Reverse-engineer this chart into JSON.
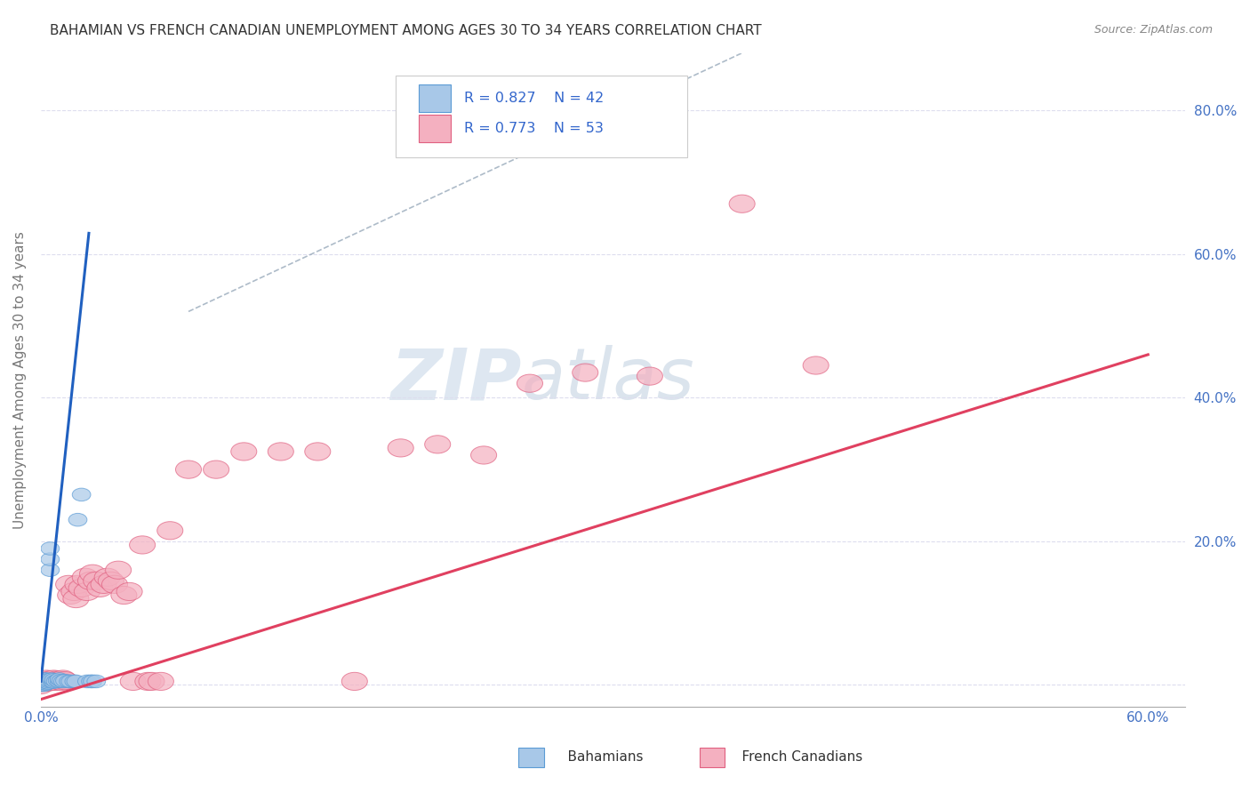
{
  "title": "BAHAMIAN VS FRENCH CANADIAN UNEMPLOYMENT AMONG AGES 30 TO 34 YEARS CORRELATION CHART",
  "source": "Source: ZipAtlas.com",
  "ylabel": "Unemployment Among Ages 30 to 34 years",
  "xlim": [
    0.0,
    0.62
  ],
  "ylim": [
    -0.03,
    0.88
  ],
  "xtick_vals": [
    0.0,
    0.1,
    0.2,
    0.3,
    0.4,
    0.5,
    0.6
  ],
  "ytick_vals": [
    0.0,
    0.2,
    0.4,
    0.6,
    0.8
  ],
  "bahamian_color": "#a8c8e8",
  "bahamian_edge": "#5b9bd5",
  "french_color": "#f4b0c0",
  "french_edge": "#e06080",
  "trend_blue": "#2060c0",
  "trend_pink": "#e04060",
  "diag_color": "#99aabb",
  "R_blue": 0.827,
  "N_blue": 42,
  "R_pink": 0.773,
  "N_pink": 53,
  "watermark_zip": "ZIP",
  "watermark_atlas": "atlas",
  "background_color": "#ffffff",
  "grid_color": "#ddddee",
  "axis_label_color": "#777777",
  "tick_label_color": "#4472c4",
  "title_color": "#333333",
  "bah_x": [
    0.0,
    0.0,
    0.001,
    0.001,
    0.001,
    0.001,
    0.002,
    0.002,
    0.002,
    0.002,
    0.002,
    0.003,
    0.003,
    0.003,
    0.003,
    0.004,
    0.004,
    0.004,
    0.005,
    0.005,
    0.005,
    0.006,
    0.006,
    0.007,
    0.007,
    0.008,
    0.009,
    0.01,
    0.01,
    0.011,
    0.012,
    0.013,
    0.015,
    0.016,
    0.018,
    0.019,
    0.02,
    0.022,
    0.025,
    0.027,
    0.028,
    0.03
  ],
  "bah_y": [
    0.0,
    0.003,
    0.0,
    0.002,
    0.004,
    0.006,
    0.0,
    0.002,
    0.004,
    0.006,
    0.008,
    0.002,
    0.004,
    0.006,
    0.008,
    0.003,
    0.005,
    0.007,
    0.16,
    0.175,
    0.19,
    0.005,
    0.008,
    0.004,
    0.007,
    0.005,
    0.006,
    0.005,
    0.008,
    0.006,
    0.005,
    0.006,
    0.005,
    0.005,
    0.005,
    0.005,
    0.23,
    0.265,
    0.005,
    0.005,
    0.005,
    0.005
  ],
  "fr_x": [
    0.0,
    0.001,
    0.002,
    0.003,
    0.004,
    0.005,
    0.006,
    0.007,
    0.008,
    0.009,
    0.01,
    0.011,
    0.012,
    0.013,
    0.015,
    0.016,
    0.018,
    0.019,
    0.02,
    0.022,
    0.024,
    0.025,
    0.027,
    0.028,
    0.03,
    0.032,
    0.034,
    0.036,
    0.038,
    0.04,
    0.042,
    0.045,
    0.048,
    0.05,
    0.055,
    0.058,
    0.06,
    0.065,
    0.07,
    0.08,
    0.095,
    0.11,
    0.13,
    0.15,
    0.17,
    0.195,
    0.215,
    0.24,
    0.265,
    0.295,
    0.33,
    0.38,
    0.42
  ],
  "fr_y": [
    0.0,
    0.005,
    0.004,
    0.008,
    0.004,
    0.007,
    0.005,
    0.008,
    0.005,
    0.007,
    0.006,
    0.005,
    0.008,
    0.006,
    0.14,
    0.125,
    0.13,
    0.12,
    0.14,
    0.135,
    0.15,
    0.13,
    0.145,
    0.155,
    0.145,
    0.135,
    0.14,
    0.15,
    0.145,
    0.14,
    0.16,
    0.125,
    0.13,
    0.005,
    0.195,
    0.005,
    0.005,
    0.005,
    0.215,
    0.3,
    0.3,
    0.325,
    0.325,
    0.325,
    0.005,
    0.33,
    0.335,
    0.32,
    0.42,
    0.435,
    0.43,
    0.67,
    0.445
  ]
}
